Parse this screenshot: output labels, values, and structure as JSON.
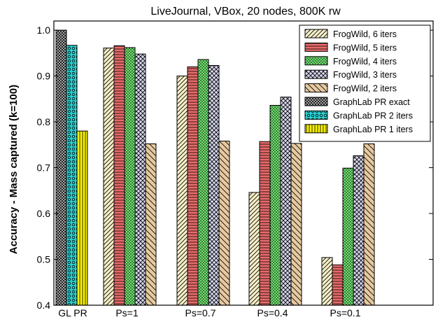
{
  "chart_data": {
    "type": "bar",
    "title": "LiveJournal, VBox, 20 nodes, 800K rw",
    "xlabel": "",
    "ylabel": "Accuracy - Mass captured (k=100)",
    "ylim": [
      0.4,
      1.02
    ],
    "yticks": [
      0.4,
      0.5,
      0.6,
      0.7,
      0.8,
      0.9,
      1.0
    ],
    "ytick_labels": [
      "0.4",
      "0.5",
      "0.6",
      "0.7",
      "0.8",
      "0.9",
      "1.0"
    ],
    "categories": [
      "GL PR",
      "Ps=1",
      "Ps=0.7",
      "Ps=0.4",
      "Ps=0.1"
    ],
    "legend_position": "top-right",
    "grid": false,
    "groups": [
      {
        "category": "GL PR",
        "bars": [
          {
            "series": "GraphLab PR exact",
            "value": 1.0
          },
          {
            "series": "GraphLab PR 2 iters",
            "value": 0.967
          },
          {
            "series": "GraphLab PR 1 iters",
            "value": 0.78
          }
        ]
      },
      {
        "category": "Ps=1",
        "bars": [
          {
            "series": "FrogWild, 6 iters",
            "value": 0.961
          },
          {
            "series": "FrogWild, 5 iters",
            "value": 0.966
          },
          {
            "series": "FrogWild, 4 iters",
            "value": 0.962
          },
          {
            "series": "FrogWild, 3 iters",
            "value": 0.948
          },
          {
            "series": "FrogWild, 2 iters",
            "value": 0.752
          }
        ]
      },
      {
        "category": "Ps=0.7",
        "bars": [
          {
            "series": "FrogWild, 6 iters",
            "value": 0.9
          },
          {
            "series": "FrogWild, 5 iters",
            "value": 0.92
          },
          {
            "series": "FrogWild, 4 iters",
            "value": 0.936
          },
          {
            "series": "FrogWild, 3 iters",
            "value": 0.923
          },
          {
            "series": "FrogWild, 2 iters",
            "value": 0.758
          }
        ]
      },
      {
        "category": "Ps=0.4",
        "bars": [
          {
            "series": "FrogWild, 6 iters",
            "value": 0.646
          },
          {
            "series": "FrogWild, 5 iters",
            "value": 0.757
          },
          {
            "series": "FrogWild, 4 iters",
            "value": 0.836
          },
          {
            "series": "FrogWild, 3 iters",
            "value": 0.854
          },
          {
            "series": "FrogWild, 2 iters",
            "value": 0.753
          }
        ]
      },
      {
        "category": "Ps=0.1",
        "bars": [
          {
            "series": "FrogWild, 6 iters",
            "value": 0.504
          },
          {
            "series": "FrogWild, 5 iters",
            "value": 0.488
          },
          {
            "series": "FrogWild, 4 iters",
            "value": 0.699
          },
          {
            "series": "FrogWild, 3 iters",
            "value": 0.726
          },
          {
            "series": "FrogWild, 2 iters",
            "value": 0.752
          }
        ]
      }
    ],
    "series": [
      {
        "name": "FrogWild, 6 iters",
        "color": "#f5efc8",
        "pattern": "diagonal-lines"
      },
      {
        "name": "FrogWild, 5 iters",
        "color": "#e86b6b",
        "pattern": "horizontal-lines"
      },
      {
        "name": "FrogWild, 4 iters",
        "color": "#6ee06e",
        "pattern": "dots-dense"
      },
      {
        "name": "FrogWild, 3 iters",
        "color": "#d6d6ec",
        "pattern": "crosshatch"
      },
      {
        "name": "FrogWild, 2 iters",
        "color": "#e7c9a0",
        "pattern": "diagonal-lines-coarse"
      },
      {
        "name": "GraphLab PR exact",
        "color": "#d8d8d8",
        "pattern": "dots-dark"
      },
      {
        "name": "GraphLab PR 2 iters",
        "color": "#2ad0d0",
        "pattern": "circles"
      },
      {
        "name": "GraphLab PR 1 iters",
        "color": "#f6f200",
        "pattern": "vertical-lines"
      }
    ]
  }
}
